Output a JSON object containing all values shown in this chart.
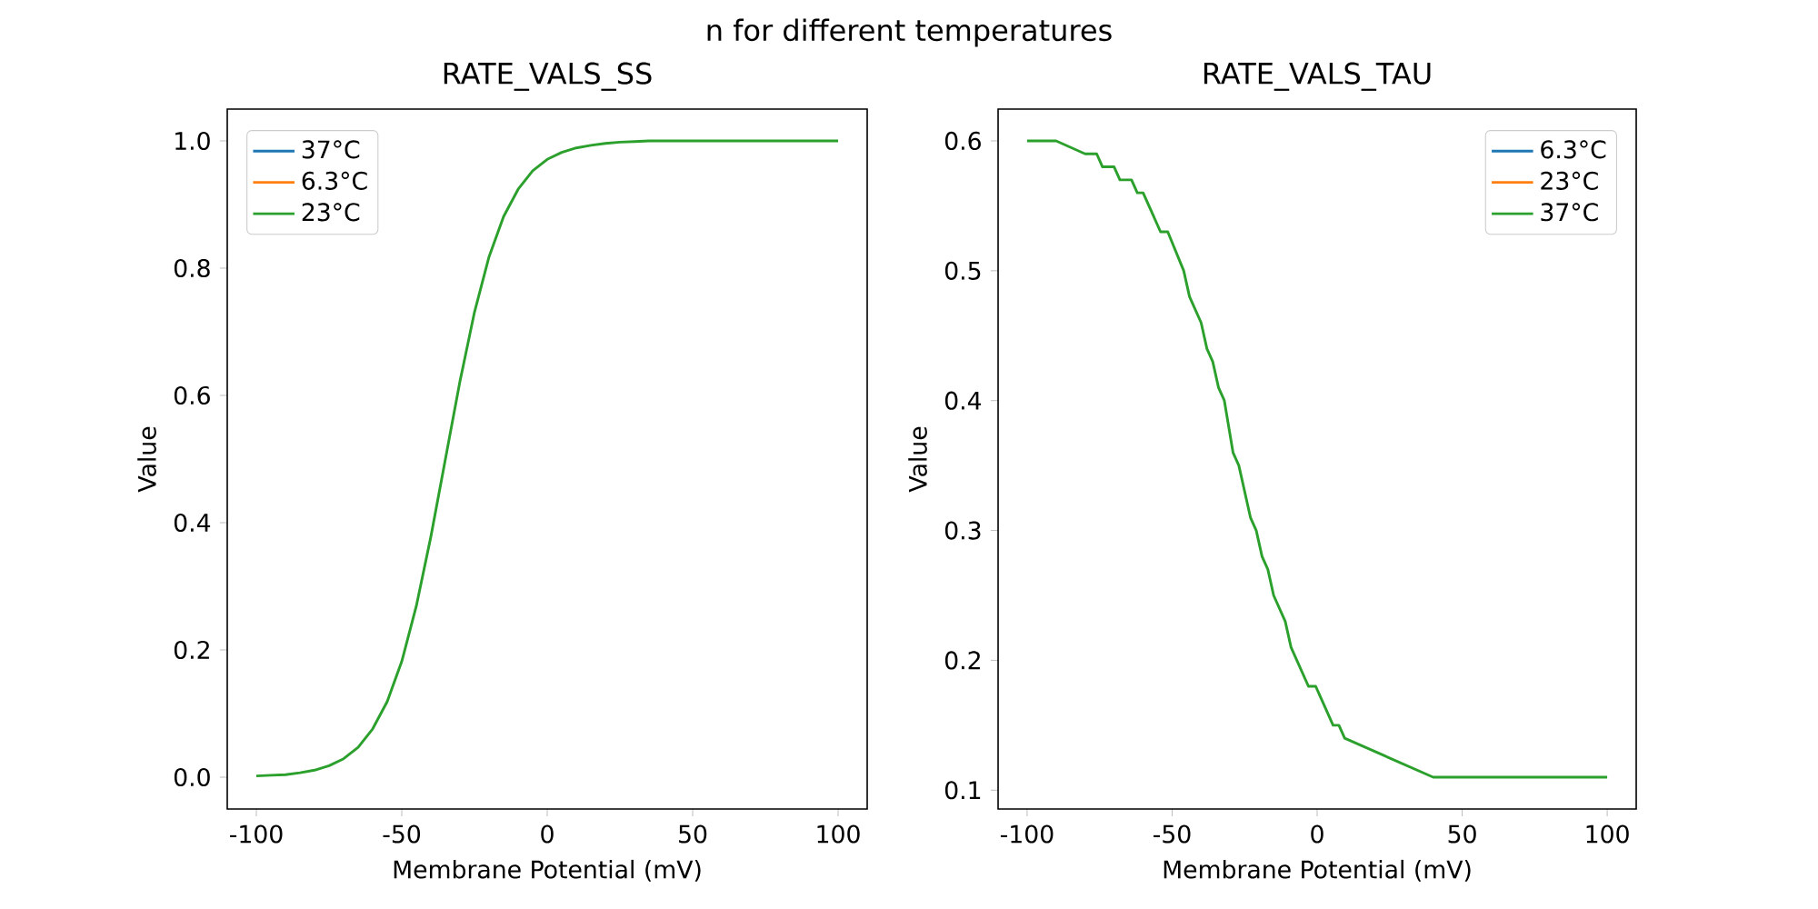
{
  "chart_data": [
    {
      "type": "line",
      "title": "RATE_VALS_SS",
      "xlabel": "Membrane Potential (mV)",
      "ylabel": "Value",
      "annotations": [
        "n for different temperatures"
      ],
      "x": [
        -100,
        -95,
        -90,
        -85,
        -80,
        -75,
        -70,
        -65,
        -60,
        -55,
        -50,
        -45,
        -40,
        -35,
        -30,
        -25,
        -20,
        -15,
        -10,
        -5,
        0,
        5,
        10,
        15,
        20,
        25,
        30,
        35,
        40,
        50,
        60,
        70,
        80,
        90,
        100
      ],
      "series": [
        {
          "name": "37°C",
          "color": "#1f77b4",
          "values": [
            null,
            null,
            null,
            null,
            null,
            null,
            null,
            null,
            null,
            null,
            null,
            null,
            null,
            null,
            null,
            null,
            null,
            null,
            null,
            null,
            null,
            null,
            null,
            null,
            null,
            null,
            null,
            null,
            null,
            null,
            null,
            null,
            null,
            null,
            null
          ]
        },
        {
          "name": "6.3°C",
          "color": "#ff7f0e",
          "values": [
            null,
            null,
            null,
            null,
            null,
            null,
            null,
            null,
            null,
            null,
            null,
            null,
            null,
            null,
            null,
            null,
            null,
            null,
            null,
            null,
            null,
            null,
            null,
            null,
            null,
            null,
            null,
            null,
            null,
            null,
            null,
            null,
            null,
            null,
            null
          ]
        },
        {
          "name": "23°C",
          "color": "#2ca02c",
          "values": [
            0.002,
            0.003,
            0.004,
            0.007,
            0.011,
            0.018,
            0.029,
            0.047,
            0.076,
            0.119,
            0.182,
            0.269,
            0.378,
            0.5,
            0.622,
            0.731,
            0.818,
            0.881,
            0.924,
            0.953,
            0.971,
            0.982,
            0.989,
            0.993,
            0.996,
            0.998,
            0.999,
            1.0,
            1.0,
            1.0,
            1.0,
            1.0,
            1.0,
            1.0,
            1.0
          ]
        }
      ],
      "xlim": [
        -110,
        110
      ],
      "xticks": [
        -100,
        -50,
        0,
        50,
        100
      ],
      "ylim": [
        -0.05,
        1.05
      ],
      "yticks": [
        {
          "value": 0,
          "label": "0.0"
        },
        0.2,
        0.4,
        0.6,
        0.8,
        {
          "value": 1,
          "label": "1.0"
        }
      ],
      "legend": "top left"
    },
    {
      "type": "line",
      "title": "RATE_VALS_TAU",
      "xlabel": "Membrane Potential (mV)",
      "ylabel": "Value",
      "x": [
        -100,
        -90,
        -80,
        -76,
        -74,
        -70,
        -68,
        -64,
        -62,
        -60,
        -54,
        -51.5,
        -46,
        -44,
        -40,
        -38,
        -36,
        -34,
        -32,
        -29,
        -27,
        -23,
        -21,
        -19,
        -17,
        -15,
        -11,
        -9,
        -3,
        -0.5,
        5.5,
        7.5,
        9.5,
        40,
        100
      ],
      "series": [
        {
          "name": "6.3°C",
          "color": "#1f77b4",
          "values": [
            null,
            null,
            null,
            null,
            null,
            null,
            null,
            null,
            null,
            null,
            null,
            null,
            null,
            null,
            null,
            null,
            null,
            null,
            null,
            null,
            null,
            null,
            null,
            null,
            null,
            null,
            null,
            null,
            null,
            null,
            null,
            null,
            null,
            null,
            null
          ]
        },
        {
          "name": "23°C",
          "color": "#ff7f0e",
          "values": [
            null,
            null,
            null,
            null,
            null,
            null,
            null,
            null,
            null,
            null,
            null,
            null,
            null,
            null,
            null,
            null,
            null,
            null,
            null,
            null,
            null,
            null,
            null,
            null,
            null,
            null,
            null,
            null,
            null,
            null,
            null,
            null,
            null,
            null,
            null
          ]
        },
        {
          "name": "37°C",
          "color": "#2ca02c",
          "values": [
            0.6,
            0.6,
            0.59,
            0.59,
            0.58,
            0.58,
            0.57,
            0.57,
            0.56,
            0.56,
            0.53,
            0.53,
            0.5,
            0.48,
            0.46,
            0.44,
            0.43,
            0.41,
            0.4,
            0.36,
            0.35,
            0.31,
            0.3,
            0.28,
            0.27,
            0.25,
            0.23,
            0.21,
            0.18,
            0.18,
            0.15,
            0.15,
            0.14,
            0.11,
            0.11
          ]
        }
      ],
      "xlim": [
        -110,
        110
      ],
      "xticks": [
        -100,
        -50,
        0,
        50,
        100
      ],
      "ylim": [
        0.0855,
        0.6245
      ],
      "yticks": [
        0.1,
        0.2,
        0.3,
        0.4,
        0.5,
        0.6
      ],
      "legend": "top right"
    }
  ]
}
